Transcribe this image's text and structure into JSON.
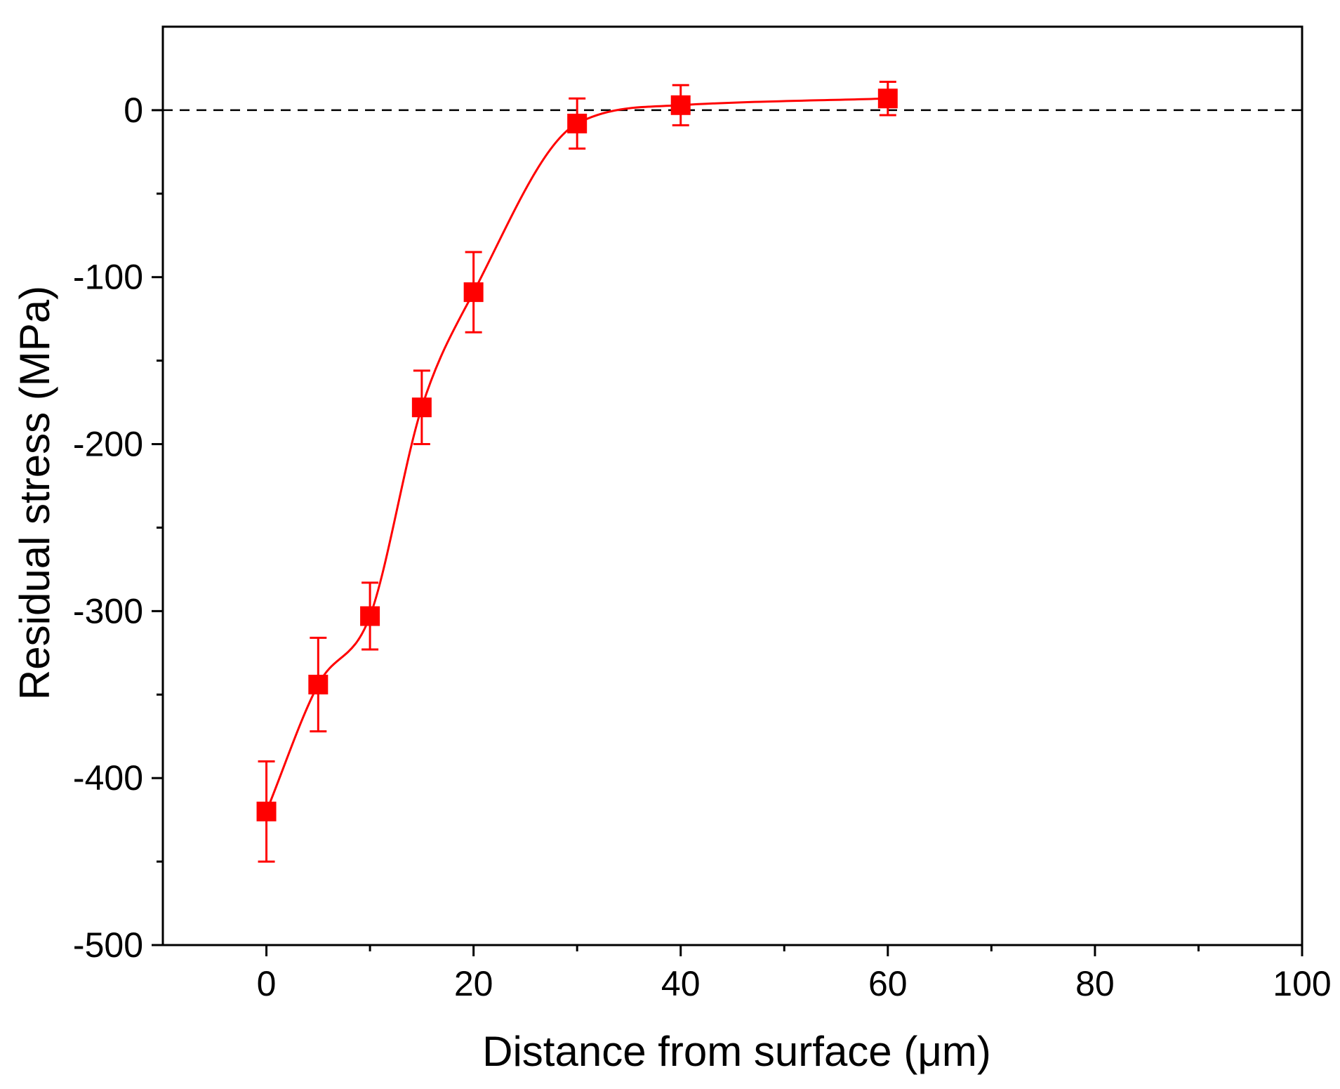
{
  "chart_data": {
    "type": "line",
    "title": "",
    "xlabel": "Distance from surface (μm)",
    "ylabel": "Residual stress (MPa)",
    "xlim": [
      -10,
      100
    ],
    "ylim": [
      -500,
      50
    ],
    "x_ticks": [
      0,
      20,
      40,
      60,
      80,
      100
    ],
    "y_ticks": [
      0,
      -100,
      -200,
      -300,
      -400,
      -500
    ],
    "x_minor_ticks": [
      10,
      30,
      50,
      70,
      90
    ],
    "y_minor_ticks": [
      -50,
      -150,
      -250,
      -350,
      -450
    ],
    "grid": false,
    "reference_line": {
      "y": 0,
      "style": "dashed",
      "color": "#000000"
    },
    "marker": "square",
    "series": [
      {
        "color": "#ff0000",
        "x": [
          0,
          5,
          10,
          15,
          20,
          30,
          40,
          60
        ],
        "y": [
          -420,
          -344,
          -303,
          -178,
          -109,
          -8,
          3,
          7
        ],
        "error": [
          30,
          28,
          20,
          22,
          24,
          15,
          12,
          10
        ]
      }
    ]
  }
}
